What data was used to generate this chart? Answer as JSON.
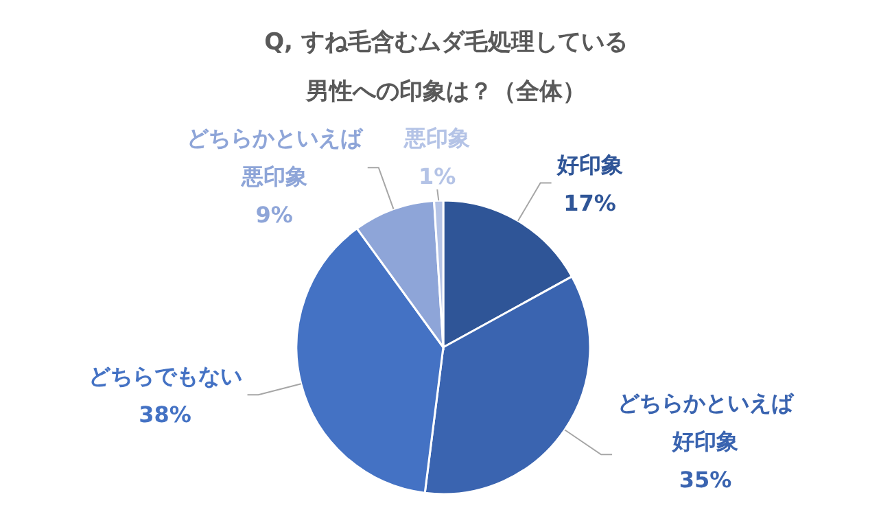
{
  "chart_data": {
    "type": "pie",
    "title": "Q, すね毛含むムダ毛処理している男性への印象は？（全体）",
    "categories": [
      "好印象",
      "どちらかといえば好印象",
      "どちらでもない",
      "どちらかといえば悪印象",
      "悪印象"
    ],
    "values": [
      17,
      35,
      38,
      9,
      1
    ],
    "colors": [
      "#2f5597",
      "#3a64b0",
      "#4472c4",
      "#8ea5d8",
      "#b4c3e6"
    ],
    "value_labels": [
      "17%",
      "35%",
      "38%",
      "9%",
      "1%"
    ]
  }
}
